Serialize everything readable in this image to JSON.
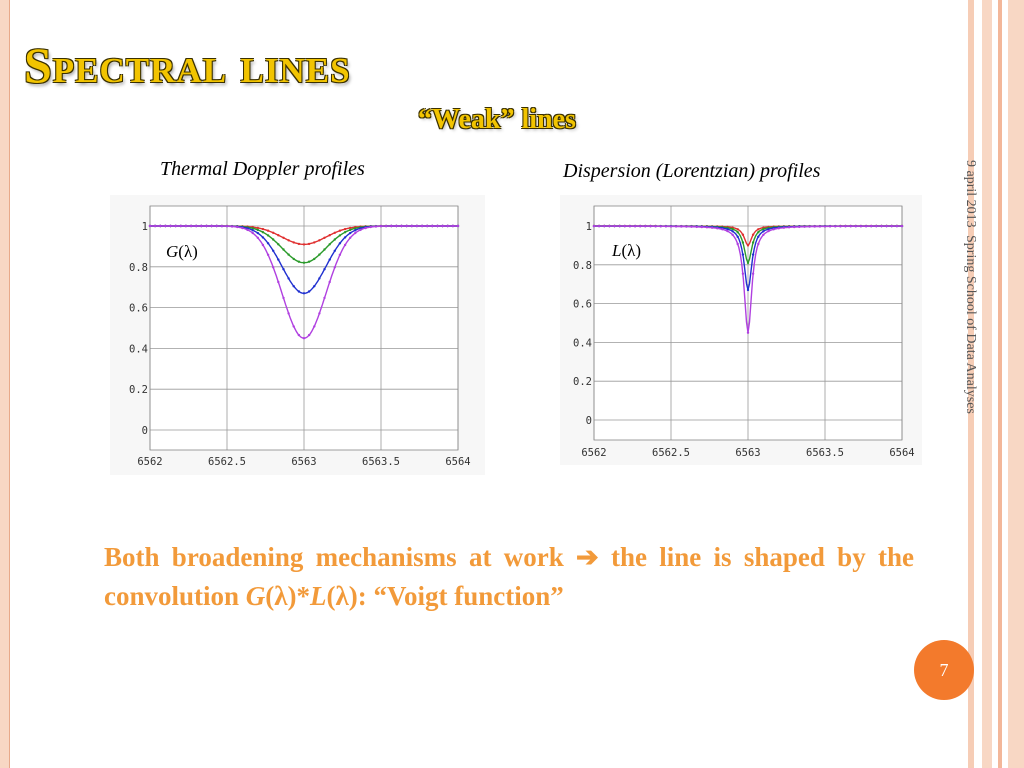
{
  "slide": {
    "title": "Spectral lines",
    "subtitle": "“Weak” lines",
    "side_date": "9 april 2013",
    "side_event": "Spring School of Data Analyses",
    "page_number": "7",
    "body": {
      "part1": "Both broadening mechanisms at work",
      "arrow": "➔",
      "part2": "the line is shaped by the convolution",
      "g": "G",
      "g_arg": "(λ)",
      "star": "*",
      "l": "L",
      "l_arg": "(λ)",
      "tail": ": “Voigt function”"
    },
    "colors": {
      "accent_title": "#f2c400",
      "body_text": "#f29a3a",
      "page_circle": "#f37a2c"
    }
  },
  "chart_data": [
    {
      "type": "line",
      "caption": "Thermal Doppler profiles",
      "curve_label": {
        "symbol": "G",
        "arg": "(λ)"
      },
      "x_ticks": [
        "6562",
        "6562.5",
        "6563",
        "6563.5",
        "6564"
      ],
      "y_ticks": [
        "1",
        "0.8",
        "0.6",
        "0.4",
        "0.2",
        "0"
      ],
      "xlim": [
        6562,
        6564
      ],
      "ylim": [
        0,
        1
      ],
      "profile": "gaussian",
      "center": 6563,
      "width": 0.2,
      "series": [
        {
          "color": "#e03030",
          "depth": 0.09
        },
        {
          "color": "#2a9a2a",
          "depth": 0.18
        },
        {
          "color": "#2030d0",
          "depth": 0.33
        },
        {
          "color": "#b040e0",
          "depth": 0.55
        }
      ]
    },
    {
      "type": "line",
      "caption": "Dispersion (Lorentzian)  profiles",
      "curve_label": {
        "symbol": "L",
        "arg": "(λ)"
      },
      "x_ticks": [
        "6562",
        "6562.5",
        "6563",
        "6563.5",
        "6564"
      ],
      "y_ticks": [
        "1",
        "0.8",
        "0.6",
        "0.4",
        "0.2",
        "0"
      ],
      "xlim": [
        6562,
        6564
      ],
      "ylim": [
        0,
        1
      ],
      "profile": "lorentzian",
      "center": 6563,
      "width": 0.03,
      "series": [
        {
          "color": "#e03030",
          "depth": 0.1
        },
        {
          "color": "#2a9a2a",
          "depth": 0.19
        },
        {
          "color": "#2030d0",
          "depth": 0.33
        },
        {
          "color": "#b040e0",
          "depth": 0.55
        }
      ]
    }
  ]
}
